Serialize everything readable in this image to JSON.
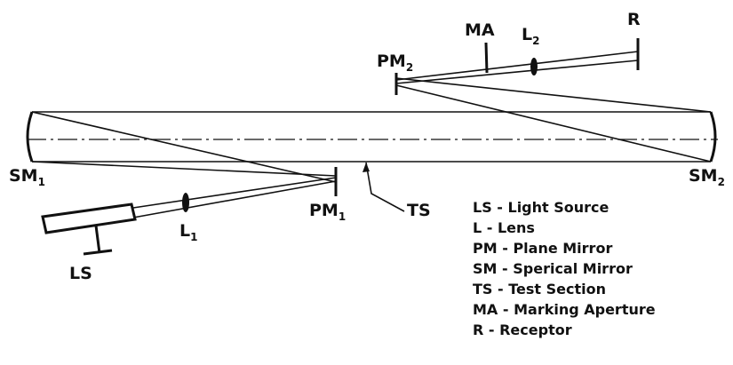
{
  "labels": {
    "sm1": {
      "main": "SM",
      "sub": "1"
    },
    "sm2": {
      "main": "SM",
      "sub": "2"
    },
    "pm1": {
      "main": "PM",
      "sub": "1"
    },
    "pm2": {
      "main": "PM",
      "sub": "2"
    },
    "l1": {
      "main": "L",
      "sub": "1"
    },
    "l2": {
      "main": "L",
      "sub": "2"
    },
    "ma": "MA",
    "r": "R",
    "ts": "TS",
    "ls": "LS"
  },
  "legend": [
    {
      "abbr": "LS",
      "text": "Light   Source"
    },
    {
      "abbr": "L",
      "text": "Lens"
    },
    {
      "abbr": "PM",
      "text": "Plane   Mirror"
    },
    {
      "abbr": "SM",
      "text": "Sperical   Mirror"
    },
    {
      "abbr": "TS",
      "text": "Test   Section"
    },
    {
      "abbr": "MA",
      "text": "Marking   Aperture"
    },
    {
      "abbr": "R",
      "text": "Receptor"
    }
  ]
}
